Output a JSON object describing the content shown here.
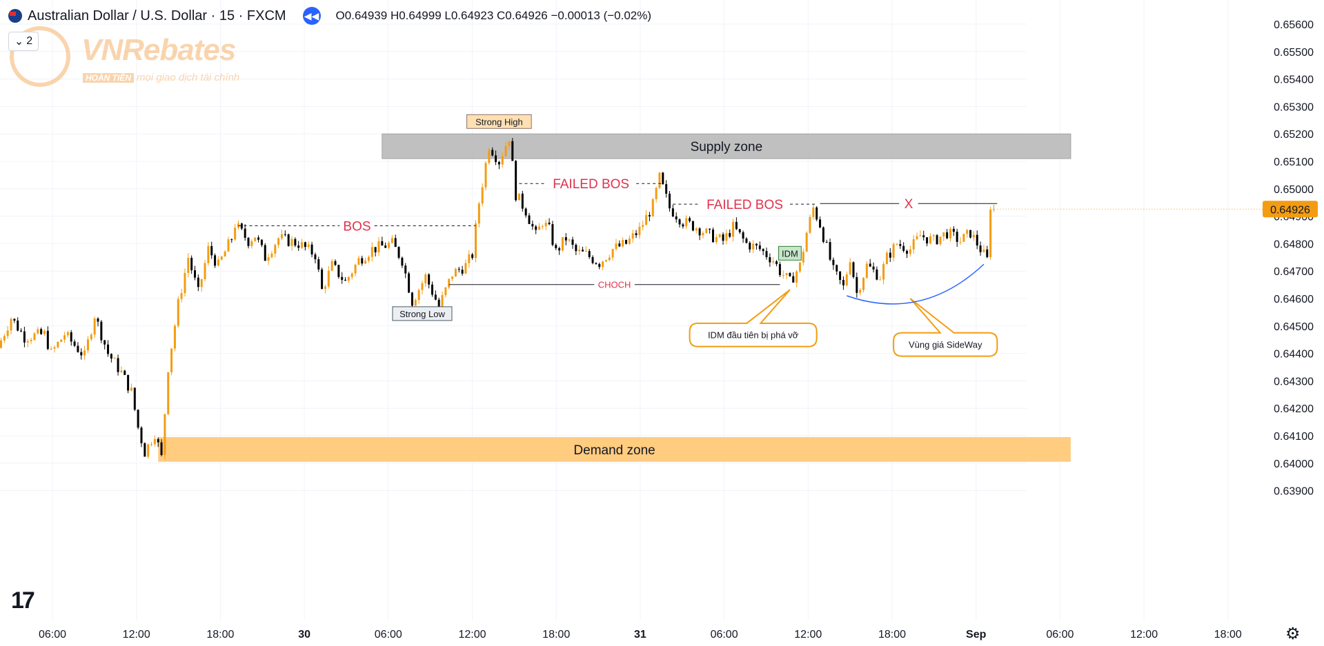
{
  "header": {
    "symbol": "Australian Dollar / U.S. Dollar · 15 · FXCM",
    "ohlc": "O0.64939  H0.64999  L0.64923  C0.64926  −0.00013 (−0.02%)",
    "collapse_label": "2"
  },
  "watermark": {
    "brand": "VNRebates",
    "badge": "HOÀN TIỀN",
    "tagline": "mọi giao dịch tài chính"
  },
  "logo_text": "17",
  "colors": {
    "up": "#f39c12",
    "down": "#000000",
    "supply": "#bdbdbd",
    "demand": "#ffcc80",
    "red_label": "#e0314b",
    "price_badge": "#f39c12",
    "callout": "#f39c12",
    "curve": "#2962ff"
  },
  "chart_data": {
    "type": "candlestick",
    "symbol": "AUDUSD",
    "timeframe": "15",
    "ylim": [
      0.6388,
      0.6564
    ],
    "y_ticks": [
      "0.65600",
      "0.65500",
      "0.65400",
      "0.65300",
      "0.65200",
      "0.65100",
      "0.65000",
      "0.64900",
      "0.64800",
      "0.64700",
      "0.64600",
      "0.64500",
      "0.64400",
      "0.64300",
      "0.64200",
      "0.64100",
      "0.64000",
      "0.63900"
    ],
    "x_ticks": [
      "06:00",
      "12:00",
      "18:00",
      "30",
      "06:00",
      "12:00",
      "18:00",
      "31",
      "06:00",
      "12:00",
      "18:00",
      "Sep",
      "06:00",
      "12:00",
      "18:00"
    ],
    "last_price": "0.64926",
    "path": [
      [
        0,
        0.6442
      ],
      [
        4,
        0.6453
      ],
      [
        8,
        0.6446
      ],
      [
        14,
        0.6447
      ],
      [
        16,
        0.644
      ],
      [
        20,
        0.6447
      ],
      [
        26,
        0.6439
      ],
      [
        29,
        0.6454
      ],
      [
        33,
        0.644
      ],
      [
        37,
        0.6433
      ],
      [
        40,
        0.6426
      ],
      [
        42,
        0.6413
      ],
      [
        44,
        0.6404
      ],
      [
        47,
        0.6411
      ],
      [
        49,
        0.6402
      ],
      [
        51,
        0.6435
      ],
      [
        54,
        0.6458
      ],
      [
        57,
        0.6475
      ],
      [
        60,
        0.6462
      ],
      [
        63,
        0.6478
      ],
      [
        66,
        0.6472
      ],
      [
        70,
        0.6482
      ],
      [
        71,
        0.6487
      ],
      [
        75,
        0.6481
      ],
      [
        77,
        0.6483
      ],
      [
        80,
        0.6475
      ],
      [
        84,
        0.6482
      ],
      [
        90,
        0.648
      ],
      [
        95,
        0.6476
      ],
      [
        97,
        0.6463
      ],
      [
        100,
        0.6472
      ],
      [
        104,
        0.6466
      ],
      [
        108,
        0.6474
      ],
      [
        112,
        0.6478
      ],
      [
        118,
        0.648
      ],
      [
        121,
        0.6474
      ],
      [
        124,
        0.6459
      ],
      [
        128,
        0.6468
      ],
      [
        132,
        0.6457
      ],
      [
        136,
        0.6469
      ],
      [
        140,
        0.6472
      ],
      [
        142,
        0.6476
      ],
      [
        144,
        0.6495
      ],
      [
        147,
        0.6516
      ],
      [
        150,
        0.651
      ],
      [
        153,
        0.6519
      ],
      [
        155,
        0.6498
      ],
      [
        158,
        0.6492
      ],
      [
        161,
        0.6483
      ],
      [
        163,
        0.6488
      ],
      [
        165,
        0.6485
      ],
      [
        167,
        0.6477
      ],
      [
        170,
        0.6482
      ],
      [
        173,
        0.6477
      ],
      [
        176,
        0.6476
      ],
      [
        180,
        0.6473
      ],
      [
        184,
        0.6478
      ],
      [
        188,
        0.648
      ],
      [
        192,
        0.6485
      ],
      [
        196,
        0.6494
      ],
      [
        198,
        0.6504
      ],
      [
        201,
        0.6493
      ],
      [
        205,
        0.6488
      ],
      [
        209,
        0.6486
      ],
      [
        213,
        0.6483
      ],
      [
        217,
        0.6481
      ],
      [
        220,
        0.6486
      ],
      [
        224,
        0.648
      ],
      [
        228,
        0.6478
      ],
      [
        232,
        0.6474
      ],
      [
        234,
        0.647
      ],
      [
        237,
        0.6466
      ],
      [
        240,
        0.6472
      ],
      [
        242,
        0.6484
      ],
      [
        244,
        0.6493
      ],
      [
        246,
        0.6487
      ],
      [
        250,
        0.647
      ],
      [
        253,
        0.6464
      ],
      [
        255,
        0.6475
      ],
      [
        257,
        0.6462
      ],
      [
        260,
        0.6472
      ],
      [
        264,
        0.6468
      ],
      [
        266,
        0.6475
      ],
      [
        269,
        0.648
      ],
      [
        273,
        0.6478
      ],
      [
        276,
        0.6483
      ],
      [
        280,
        0.6481
      ],
      [
        284,
        0.6484
      ],
      [
        288,
        0.6481
      ],
      [
        291,
        0.6484
      ],
      [
        294,
        0.6478
      ],
      [
        296,
        0.6474
      ],
      [
        297,
        0.6494
      ],
      [
        298,
        0.64926
      ]
    ],
    "zones": [
      {
        "label": "Supply zone",
        "y1": 0.6511,
        "y2": 0.652,
        "x_from": 114,
        "x_to": 320
      },
      {
        "label": "Demand zone",
        "y1": 0.64005,
        "y2": 0.64095,
        "x_from": 47,
        "x_to": 320
      }
    ],
    "lines": [
      {
        "label": "BOS",
        "price": 0.64865,
        "x_from": 71,
        "x_to": 142,
        "style": "dashed"
      },
      {
        "label": "FAILED BOS",
        "price": 0.65019,
        "x_from": 155,
        "x_to": 198,
        "style": "dashed"
      },
      {
        "label": "FAILED BOS",
        "price": 0.64944,
        "x_from": 201,
        "x_to": 244,
        "style": "dashed"
      },
      {
        "label": "CHOCH",
        "price": 0.64651,
        "x_from": 134,
        "x_to": 233,
        "style": "solid"
      },
      {
        "label": "X",
        "price": 0.64946,
        "x_from": 245,
        "x_to": 298,
        "style": "solid"
      }
    ],
    "labels": [
      {
        "text": "Strong High",
        "x": 149,
        "price": 0.65245,
        "style": "high"
      },
      {
        "text": "Strong Low",
        "x": 126,
        "price": 0.64545,
        "style": "low"
      },
      {
        "text": "IDM",
        "x": 236,
        "price": 0.64765,
        "style": "idm"
      }
    ],
    "callouts": [
      {
        "text": "IDM đầu tiên bị phá vỡ",
        "x_from": 206,
        "x_to": 244,
        "y_top": 0.6451,
        "y_bottom": 0.64425,
        "tip_x": 236,
        "tip_price": 0.64632
      },
      {
        "text": "Vùng giá SideWay",
        "x_from": 267,
        "x_to": 298,
        "y_top": 0.64475,
        "y_bottom": 0.6439,
        "tip_x": 272,
        "tip_price": 0.646
      }
    ],
    "curve": {
      "x_from": 253,
      "x_to": 294,
      "price_start": 0.6461,
      "price_mid": 0.64585,
      "price_end": 0.64725
    }
  }
}
